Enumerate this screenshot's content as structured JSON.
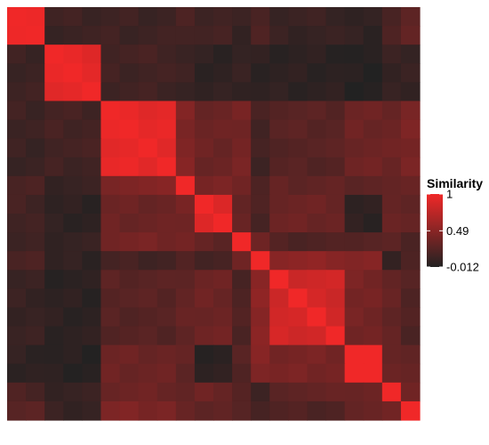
{
  "chart_data": {
    "type": "heatmap",
    "title": "",
    "xlabel": "",
    "ylabel": "",
    "legend": {
      "title": "Similarity",
      "position": "right",
      "ticks": [
        {
          "value": 1,
          "label": "1"
        },
        {
          "value": 0.49,
          "label": "0.49"
        },
        {
          "value": -0.012,
          "label": "-0.012"
        }
      ]
    },
    "colors": {
      "low": "#222222",
      "high": "#f02828"
    },
    "value_range": [
      -0.012,
      1
    ],
    "blocks": [
      2,
      3,
      4,
      1,
      2,
      1,
      1,
      4,
      2,
      1,
      1
    ],
    "block_similarity": [
      [
        1.0,
        0.12,
        0.12,
        0.18,
        0.15,
        0.1,
        0.22,
        0.1,
        0.05,
        0.2,
        0.28
      ],
      [
        0.12,
        0.95,
        0.15,
        0.1,
        0.05,
        0.08,
        0.05,
        0.05,
        0.02,
        0.08,
        0.1
      ],
      [
        0.12,
        0.15,
        0.95,
        0.45,
        0.35,
        0.4,
        0.15,
        0.25,
        0.35,
        0.35,
        0.42
      ],
      [
        0.18,
        0.1,
        0.45,
        1.0,
        0.4,
        0.4,
        0.2,
        0.3,
        0.3,
        0.3,
        0.3
      ],
      [
        0.15,
        0.05,
        0.35,
        0.4,
        0.92,
        0.3,
        0.18,
        0.35,
        0.05,
        0.35,
        0.3
      ],
      [
        0.1,
        0.08,
        0.4,
        0.4,
        0.3,
        1.0,
        0.35,
        0.2,
        0.25,
        0.25,
        0.22
      ],
      [
        0.22,
        0.05,
        0.15,
        0.2,
        0.18,
        0.35,
        1.0,
        0.5,
        0.45,
        0.1,
        0.2
      ],
      [
        0.1,
        0.05,
        0.25,
        0.3,
        0.35,
        0.2,
        0.5,
        0.85,
        0.4,
        0.3,
        0.22
      ],
      [
        0.05,
        0.02,
        0.35,
        0.3,
        0.05,
        0.25,
        0.45,
        0.4,
        1.0,
        0.35,
        0.3
      ],
      [
        0.2,
        0.08,
        0.35,
        0.3,
        0.35,
        0.25,
        0.1,
        0.3,
        0.35,
        1.0,
        0.4
      ],
      [
        0.28,
        0.1,
        0.42,
        0.3,
        0.3,
        0.22,
        0.2,
        0.22,
        0.3,
        0.4,
        1.0
      ]
    ]
  }
}
